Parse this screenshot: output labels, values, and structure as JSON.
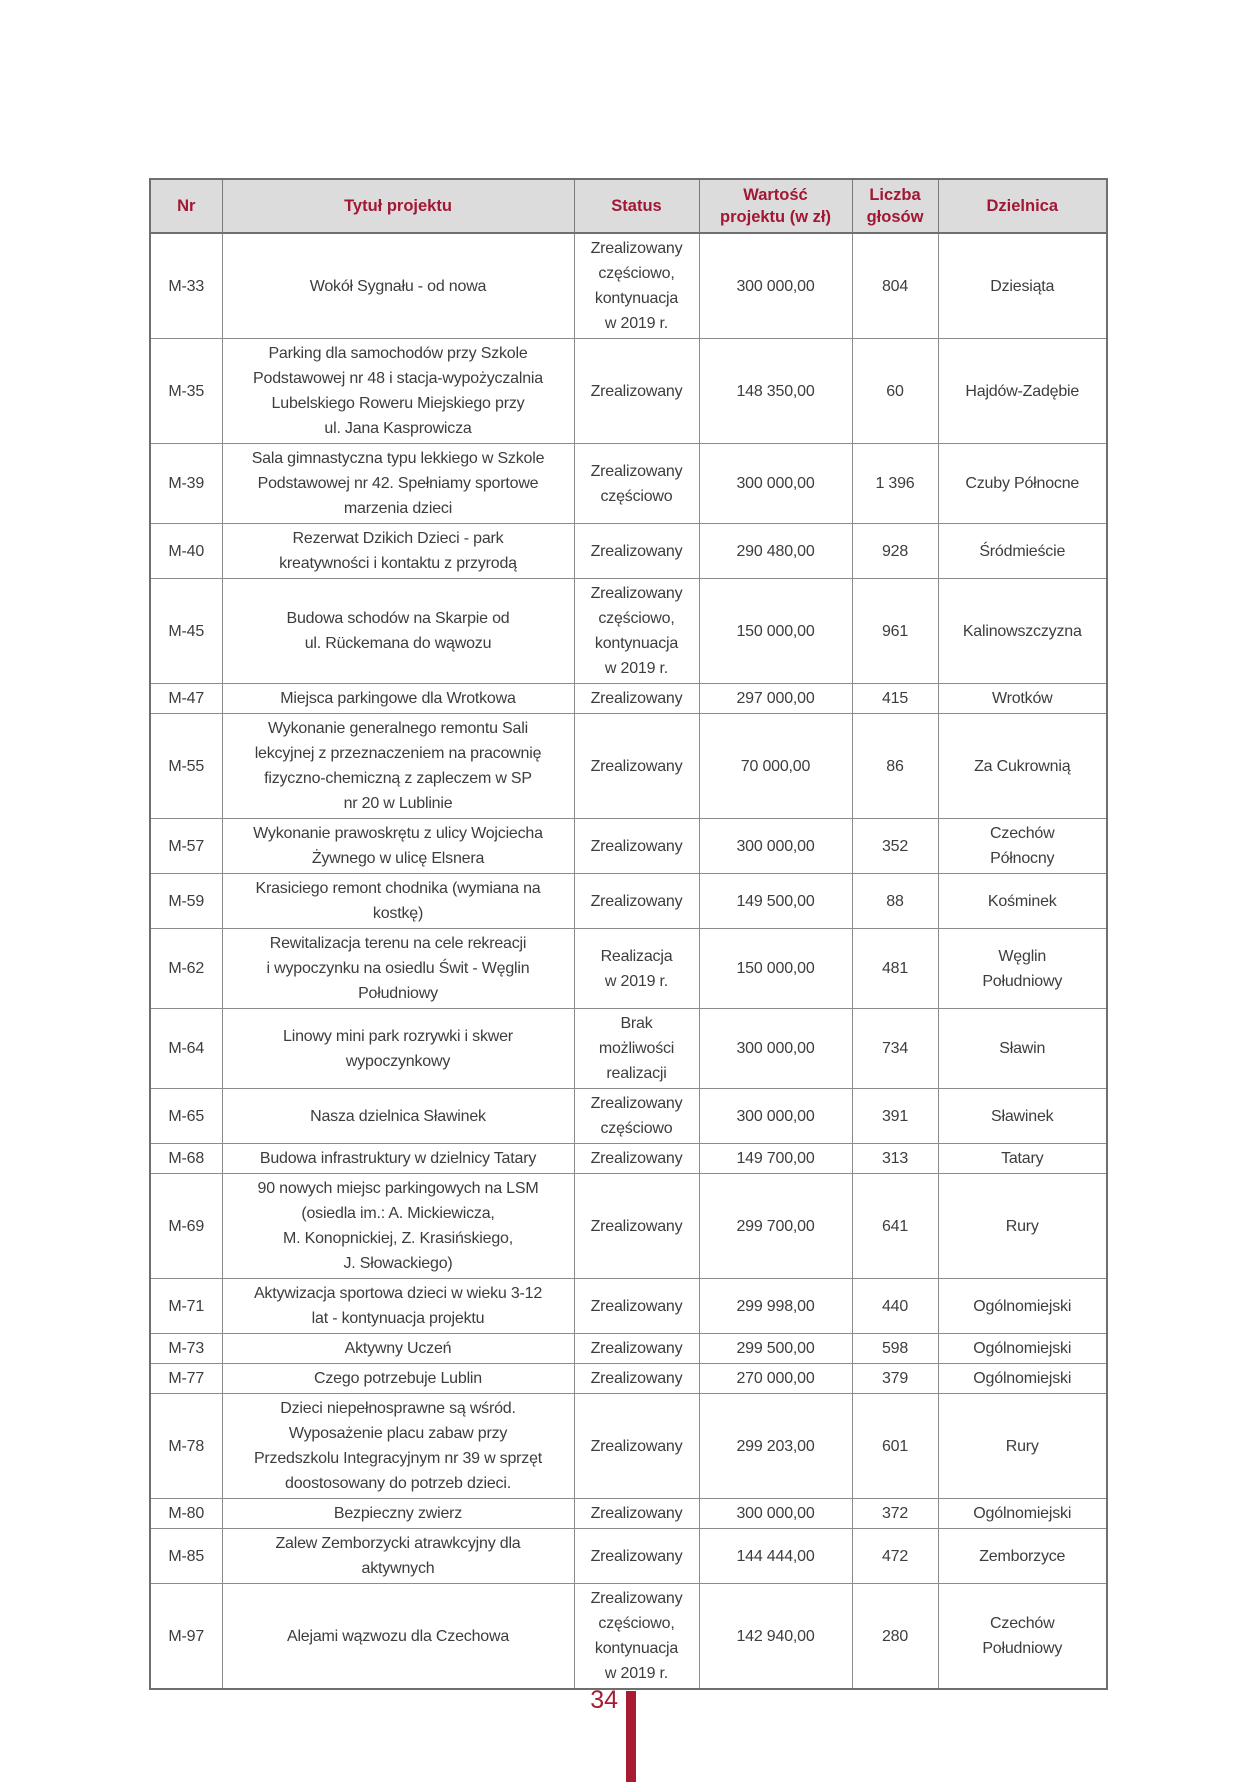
{
  "page": {
    "number": "34"
  },
  "colors": {
    "header_text": "#a21834",
    "header_bg": "#dcdcdc",
    "body_text": "#3d3d3d",
    "accent": "#a81b33"
  },
  "table": {
    "columns": [
      {
        "label": "Nr"
      },
      {
        "label": "Tytuł projektu"
      },
      {
        "label": "Status"
      },
      {
        "label": "Wartość\nprojektu (w zł)"
      },
      {
        "label": "Liczba\ngłosów"
      },
      {
        "label": "Dzielnica"
      }
    ],
    "rows": [
      {
        "nr": "M-33",
        "title": "Wokół Sygnału - od nowa",
        "status": "Zrealizowany\nczęściowo,\nkontynuacja\nw 2019 r.",
        "value": "300 000,00",
        "votes": "804",
        "district": "Dziesiąta"
      },
      {
        "nr": "M-35",
        "title": "Parking dla samochodów przy Szkole\nPodstawowej nr 48 i stacja-wypożyczalnia\nLubelskiego Roweru Miejskiego przy\nul. Jana Kasprowicza",
        "status": "Zrealizowany",
        "value": "148 350,00",
        "votes": "60",
        "district": "Hajdów-Zadębie"
      },
      {
        "nr": "M-39",
        "title": "Sala gimnastyczna typu lekkiego w Szkole\nPodstawowej nr 42. Spełniamy sportowe\nmarzenia dzieci",
        "status": "Zrealizowany\nczęściowo",
        "value": "300 000,00",
        "votes": "1 396",
        "district": "Czuby Północne"
      },
      {
        "nr": "M-40",
        "title": "Rezerwat Dzikich Dzieci - park\nkreatywności i kontaktu z przyrodą",
        "status": "Zrealizowany",
        "value": "290 480,00",
        "votes": "928",
        "district": "Śródmieście"
      },
      {
        "nr": "M-45",
        "title": "Budowa schodów na Skarpie od\nul. Rückemana do wąwozu",
        "status": "Zrealizowany\nczęściowo,\nkontynuacja\nw 2019 r.",
        "value": "150 000,00",
        "votes": "961",
        "district": "Kalinowszczyzna"
      },
      {
        "nr": "M-47",
        "title": "Miejsca parkingowe dla Wrotkowa",
        "status": "Zrealizowany",
        "value": "297 000,00",
        "votes": "415",
        "district": "Wrotków"
      },
      {
        "nr": "M-55",
        "title": "Wykonanie generalnego remontu Sali\nlekcyjnej z przeznaczeniem na pracownię\nfizyczno-chemiczną z zapleczem w SP\nnr 20 w Lublinie",
        "status": "Zrealizowany",
        "value": "70 000,00",
        "votes": "86",
        "district": "Za Cukrownią"
      },
      {
        "nr": "M-57",
        "title": "Wykonanie prawoskrętu z ulicy Wojciecha\nŻywnego w ulicę Elsnera",
        "status": "Zrealizowany",
        "value": "300 000,00",
        "votes": "352",
        "district": "Czechów\nPółnocny"
      },
      {
        "nr": "M-59",
        "title": "Krasiciego remont chodnika (wymiana na\nkostkę)",
        "status": "Zrealizowany",
        "value": "149 500,00",
        "votes": "88",
        "district": "Kośminek"
      },
      {
        "nr": "M-62",
        "title": "Rewitalizacja terenu na cele rekreacji\ni wypoczynku na osiedlu Świt - Węglin\nPołudniowy",
        "status": "Realizacja\nw 2019 r.",
        "value": "150 000,00",
        "votes": "481",
        "district": "Węglin\nPołudniowy"
      },
      {
        "nr": "M-64",
        "title": "Linowy mini park rozrywki i skwer\nwypoczynkowy",
        "status": "Brak\nmożliwości\nrealizacji",
        "value": "300 000,00",
        "votes": "734",
        "district": "Sławin"
      },
      {
        "nr": "M-65",
        "title": "Nasza dzielnica Sławinek",
        "status": "Zrealizowany\nczęściowo",
        "value": "300 000,00",
        "votes": "391",
        "district": "Sławinek"
      },
      {
        "nr": "M-68",
        "title": "Budowa infrastruktury w dzielnicy Tatary",
        "status": "Zrealizowany",
        "value": "149 700,00",
        "votes": "313",
        "district": "Tatary"
      },
      {
        "nr": "M-69",
        "title": "90 nowych miejsc parkingowych na LSM\n(osiedla im.: A. Mickiewicza,\nM. Konopnickiej, Z. Krasińskiego,\nJ. Słowackiego)",
        "status": "Zrealizowany",
        "value": "299 700,00",
        "votes": "641",
        "district": "Rury"
      },
      {
        "nr": "M-71",
        "title": "Aktywizacja sportowa dzieci w wieku 3-12\nlat - kontynuacja projektu",
        "status": "Zrealizowany",
        "value": "299 998,00",
        "votes": "440",
        "district": "Ogólnomiejski"
      },
      {
        "nr": "M-73",
        "title": "Aktywny Uczeń",
        "status": "Zrealizowany",
        "value": "299 500,00",
        "votes": "598",
        "district": "Ogólnomiejski"
      },
      {
        "nr": "M-77",
        "title": "Czego potrzebuje Lublin",
        "status": "Zrealizowany",
        "value": "270 000,00",
        "votes": "379",
        "district": "Ogólnomiejski"
      },
      {
        "nr": "M-78",
        "title": "Dzieci niepełnosprawne są wśród.\nWyposażenie placu zabaw przy\nPrzedszkolu Integracyjnym nr 39 w sprzęt\ndoostosowany do potrzeb dzieci.",
        "status": "Zrealizowany",
        "value": "299 203,00",
        "votes": "601",
        "district": "Rury"
      },
      {
        "nr": "M-80",
        "title": "Bezpieczny zwierz",
        "status": "Zrealizowany",
        "value": "300 000,00",
        "votes": "372",
        "district": "Ogólnomiejski"
      },
      {
        "nr": "M-85",
        "title": "Zalew Zemborzycki atrawkcyjny dla\naktywnych",
        "status": "Zrealizowany",
        "value": "144 444,00",
        "votes": "472",
        "district": "Zemborzyce"
      },
      {
        "nr": "M-97",
        "title": "Alejami wązwozu dla Czechowa",
        "status": "Zrealizowany\nczęściowo,\nkontynuacja\nw 2019 r.",
        "value": "142 940,00",
        "votes": "280",
        "district": "Czechów\nPołudniowy"
      }
    ]
  }
}
